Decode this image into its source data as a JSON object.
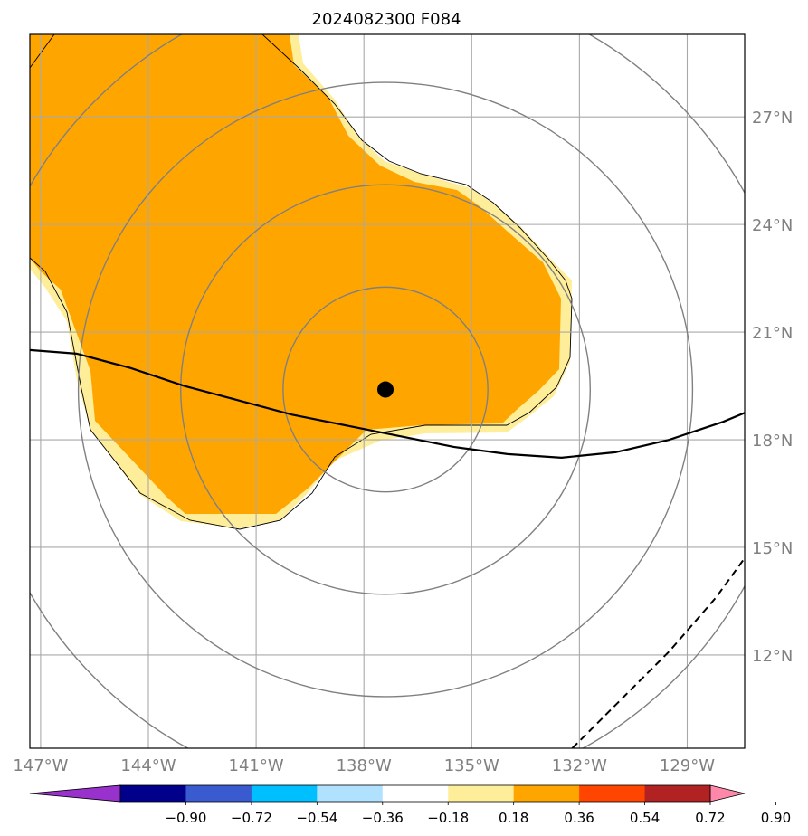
{
  "chart_data": {
    "type": "map",
    "title": "2024082300 F084",
    "projection": "regional lat/lon map centered on storm",
    "x_axis": {
      "ticks": [
        -147,
        -144,
        -141,
        -138,
        -135,
        -132,
        -129
      ],
      "tick_labels": [
        "147°W",
        "144°W",
        "141°W",
        "138°W",
        "135°W",
        "132°W",
        "129°W"
      ],
      "range": [
        -147.3,
        -127.4
      ]
    },
    "y_axis": {
      "ticks": [
        12,
        15,
        18,
        21,
        24,
        27
      ],
      "tick_labels": [
        "12°N",
        "15°N",
        "18°N",
        "21°N",
        "24°N",
        "27°N"
      ],
      "range": [
        9.4,
        29.3
      ],
      "position": "right"
    },
    "grid": true,
    "center_marker": {
      "lon": -137.4,
      "lat": 19.4,
      "color": "#000000"
    },
    "range_rings_deg": [
      2.85,
      5.7,
      8.55,
      11.4
    ],
    "filled_field": {
      "levels": [
        0.18,
        0.36,
        0.54
      ],
      "colors": [
        "#ffee99",
        "#ffa500"
      ],
      "note": "values between 0.36 and 0.54 cover most of the domain northwest of the center"
    },
    "solid_track_line": {
      "lon": [
        -147.3,
        -146,
        -144.5,
        -143,
        -141.5,
        -140,
        -138.5,
        -137,
        -135.5,
        -134,
        -132.5,
        -131,
        -129.5,
        -128,
        -127.4
      ],
      "lat": [
        20.5,
        20.4,
        20.0,
        19.5,
        19.1,
        18.7,
        18.4,
        18.1,
        17.8,
        17.6,
        17.5,
        17.65,
        18.0,
        18.5,
        18.75
      ]
    },
    "dashed_line": {
      "lon": [
        -132.2,
        -131,
        -129.5,
        -128.2,
        -127.4
      ],
      "lat": [
        9.4,
        10.6,
        12.1,
        13.6,
        14.7
      ]
    },
    "colorbar": {
      "ticks": [
        -0.9,
        -0.72,
        -0.54,
        -0.36,
        -0.18,
        0.18,
        0.36,
        0.54,
        0.72,
        0.9
      ],
      "tick_labels": [
        "−0.90",
        "−0.72",
        "−0.54",
        "−0.36",
        "−0.18",
        "0.18",
        "0.36",
        "0.54",
        "0.72",
        "0.90"
      ],
      "colors": [
        "#9932cc",
        "#00008b",
        "#3a5bcf",
        "#00bfff",
        "#b0e2ff",
        "#ffffff",
        "#ffee99",
        "#ffa500",
        "#ff4500",
        "#b22222",
        "#ff88aa"
      ],
      "extend": "both"
    }
  }
}
